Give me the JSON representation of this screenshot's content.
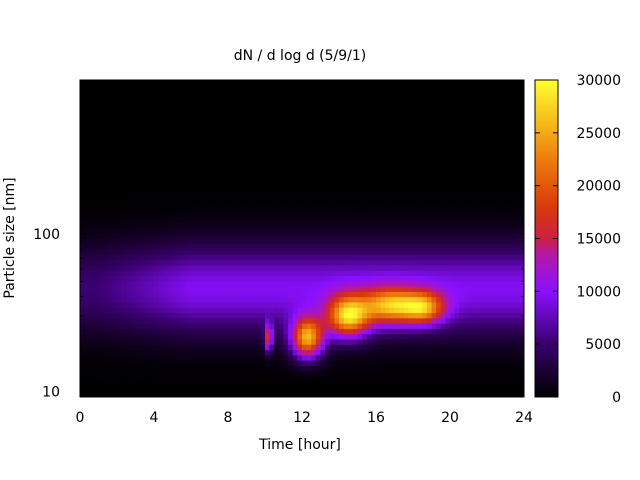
{
  "chart_data": {
    "type": "heatmap",
    "title": "dN / d log d (5/9/1)",
    "xlabel": "Time [hour]",
    "ylabel": "Particle size [nm]",
    "x_range": [
      0,
      24
    ],
    "x_ticks": [
      0,
      4,
      8,
      12,
      16,
      20,
      24
    ],
    "y_scale": "log",
    "y_range": [
      9.2,
      950
    ],
    "y_ticks": [
      10,
      100
    ],
    "colorbar": {
      "range": [
        0,
        30000
      ],
      "ticks": [
        0,
        5000,
        10000,
        15000,
        20000,
        25000,
        30000
      ],
      "palette": "black-purple-red-orange-yellow"
    },
    "features": [
      {
        "time_center": 12.3,
        "size_center_nm": 22,
        "peak_value": 23000
      },
      {
        "time_center": 14.5,
        "size_center_nm": 30,
        "peak_value": 22000
      },
      {
        "time_center": 16.8,
        "size_center_nm": 35,
        "peak_value": 18500
      },
      {
        "time_center": 18.6,
        "size_center_nm": 34,
        "peak_value": 16000
      },
      {
        "time_center": 10.2,
        "size_center_nm": 22,
        "peak_value": 15000
      }
    ],
    "background_mode": {
      "size_center_nm": 45,
      "peak_value": 9500
    },
    "grid": false
  }
}
